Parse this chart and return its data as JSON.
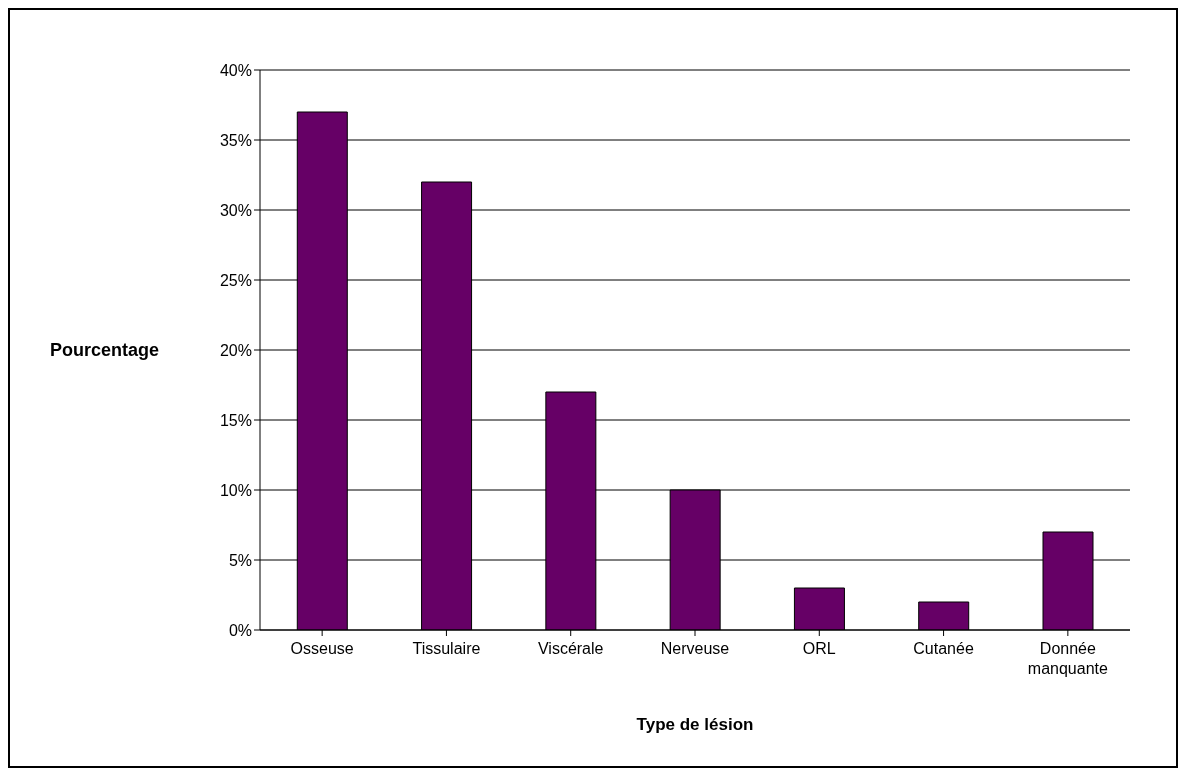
{
  "chart_data": {
    "type": "bar",
    "xlabel": "Type de lésion",
    "ylabel": "Pourcentage",
    "categories": [
      "Osseuse",
      "Tissulaire",
      "Viscérale",
      "Nerveuse",
      "ORL",
      "Cutanée",
      "Donnée manquante"
    ],
    "values": [
      37,
      32,
      17,
      10,
      3,
      2,
      7
    ],
    "color": "#660066",
    "ylim": [
      0,
      40
    ],
    "yticks": [
      {
        "value": 0,
        "label": "0%"
      },
      {
        "value": 5,
        "label": "5%"
      },
      {
        "value": 10,
        "label": "10%"
      },
      {
        "value": 15,
        "label": "15%"
      },
      {
        "value": 20,
        "label": "20%"
      },
      {
        "value": 25,
        "label": "25%"
      },
      {
        "value": 30,
        "label": "30%"
      },
      {
        "value": 35,
        "label": "35%"
      },
      {
        "value": 40,
        "label": "40%"
      }
    ],
    "grid": "y",
    "legend": false
  }
}
